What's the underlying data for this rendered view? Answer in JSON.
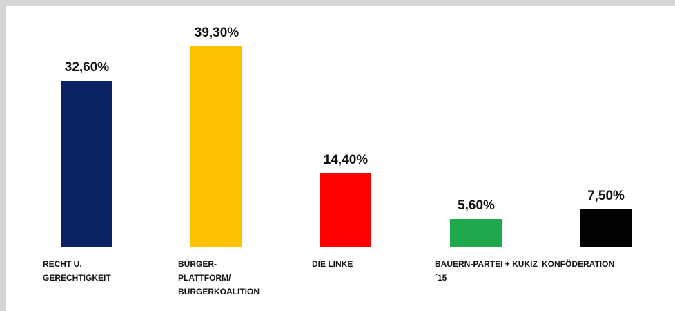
{
  "chart_data": {
    "type": "bar",
    "categories": [
      "RECHT U. GERECHTIGKEIT",
      "BÜRGER-PLATTFORM/ BÜRGERKOALITION",
      "DIE LINKE",
      "BAUERN-PARTEI + KUKIZ´15",
      "KONFÖDERATION"
    ],
    "values": [
      32.6,
      39.3,
      14.4,
      5.6,
      7.5
    ],
    "value_labels": [
      "32,60%",
      "39,30%",
      "14,40%",
      "5,60%",
      "7,50%"
    ],
    "colors": [
      "#0b2260",
      "#ffc000",
      "#ff0000",
      "#1fa84c",
      "#000000"
    ]
  }
}
